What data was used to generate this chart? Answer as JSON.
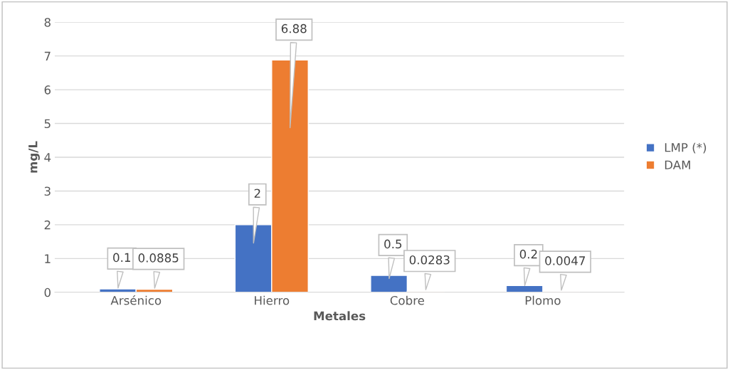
{
  "chart_data": {
    "type": "bar",
    "xlabel": "Metales",
    "ylabel": "mg/L",
    "categories": [
      "Arsénico",
      "Hierro",
      "Cobre",
      "Plomo"
    ],
    "series": [
      {
        "name": "LMP (*)",
        "color": "#4472c4",
        "values": [
          0.1,
          2,
          0.5,
          0.2
        ]
      },
      {
        "name": "DAM",
        "color": "#ed7d31",
        "values": [
          0.0885,
          6.88,
          0.0283,
          0.0047
        ]
      }
    ],
    "ylim": [
      0,
      8
    ],
    "yticks": [
      0,
      1,
      2,
      3,
      4,
      5,
      6,
      7,
      8
    ],
    "grid": "y",
    "legend": "right",
    "data_labels": true
  }
}
